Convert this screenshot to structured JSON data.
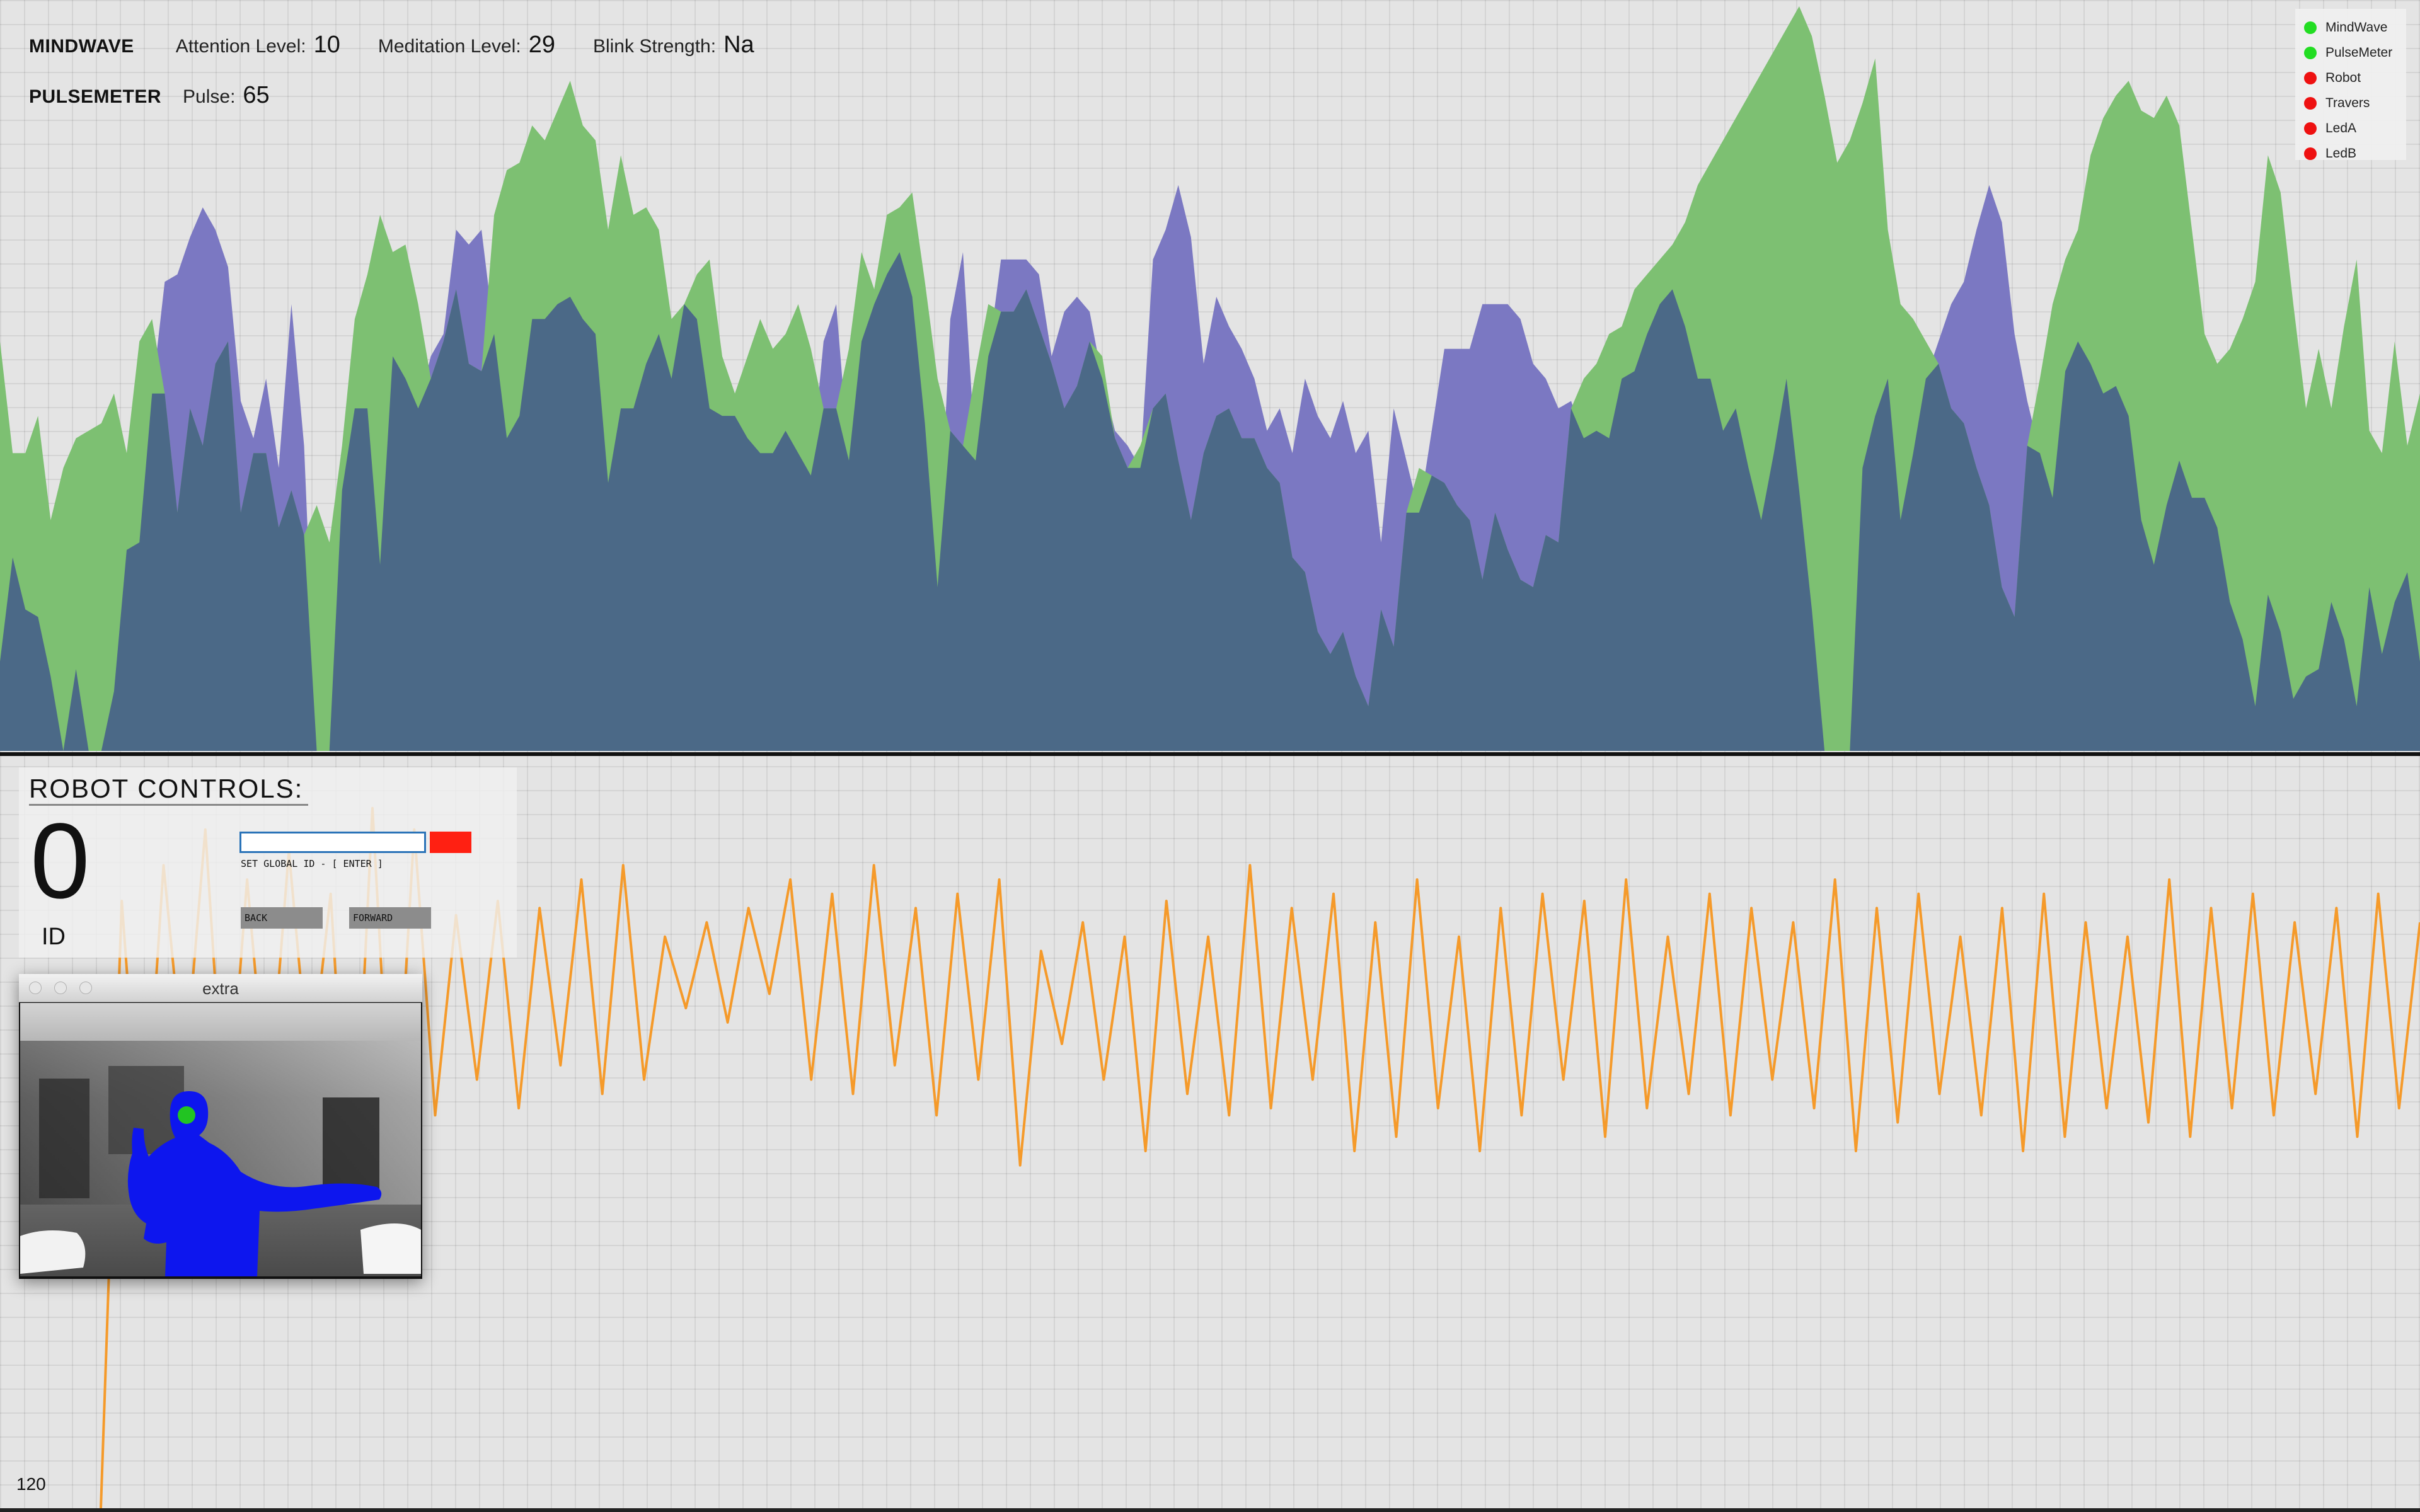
{
  "header": {
    "mindwave": {
      "title": "MINDWAVE",
      "attention_label": "Attention Level:",
      "attention_value": "10",
      "meditation_label": "Meditation Level:",
      "meditation_value": "29",
      "blink_label": "Blink Strength:",
      "blink_value": "Na"
    },
    "pulsemeter": {
      "title": "PULSEMETER",
      "pulse_label": "Pulse:",
      "pulse_value": "65"
    }
  },
  "legend": {
    "items": [
      {
        "label": "MindWave",
        "status": "connected",
        "color": "#22dd22"
      },
      {
        "label": "PulseMeter",
        "status": "connected",
        "color": "#22dd22"
      },
      {
        "label": "Robot",
        "status": "disconnected",
        "color": "#ee1111"
      },
      {
        "label": "Travers",
        "status": "disconnected",
        "color": "#ee1111"
      },
      {
        "label": "LedA",
        "status": "disconnected",
        "color": "#ee1111"
      },
      {
        "label": "LedB",
        "status": "disconnected",
        "color": "#ee1111"
      }
    ]
  },
  "robot_controls": {
    "title": "ROBOT CONTROLS:",
    "id_value": "0",
    "id_label": "ID",
    "global_id_input_value": "",
    "set_global_id_label": "SET GLOBAL ID - [ ENTER ]",
    "back_label": "BACK",
    "forward_label": "FORWARD"
  },
  "extra_window": {
    "title": "extra"
  },
  "footer": {
    "sample_count": "120"
  },
  "colors": {
    "attention_fill": "#7b78c2",
    "meditation_fill": "#7dc072",
    "overlap_fill": "#4b6987",
    "pulse_line": "#f59a2a",
    "user_silhouette": "#0d16ee",
    "head_marker": "#22c422"
  },
  "chart_data": [
    {
      "type": "area",
      "series": [
        {
          "values": [
            12,
            26,
            19,
            18,
            10,
            0,
            11,
            0,
            0,
            8,
            27,
            28,
            48,
            63,
            64,
            69,
            73,
            70,
            65,
            47,
            42,
            50,
            38,
            60,
            41,
            0,
            0,
            35,
            46,
            46,
            25,
            53,
            50,
            46,
            53,
            56,
            70,
            68,
            70,
            56,
            42,
            45,
            58,
            58,
            60,
            61,
            58,
            56,
            36,
            46,
            46,
            52,
            56,
            50,
            60,
            58,
            46,
            45,
            45,
            42,
            40,
            40,
            43,
            40,
            37,
            55,
            60,
            39,
            55,
            60,
            64,
            67,
            61,
            44,
            22,
            58,
            67,
            39,
            53,
            66,
            66,
            66,
            64,
            53,
            59,
            61,
            59,
            50,
            43,
            41,
            38,
            66,
            70,
            76,
            69,
            52,
            61,
            57,
            54,
            50,
            43,
            46,
            40,
            50,
            45,
            42,
            47,
            40,
            43,
            28,
            46,
            39,
            32,
            43,
            54,
            54,
            54,
            60,
            60,
            60,
            58,
            52,
            50,
            46,
            47,
            42,
            43,
            42,
            50,
            51,
            56,
            60,
            62,
            57,
            50,
            50,
            43,
            46,
            38,
            31,
            40,
            50,
            35,
            19,
            0,
            0,
            0,
            38,
            45,
            50,
            31,
            40,
            50,
            55,
            60,
            63,
            70,
            76,
            71,
            56,
            47,
            40,
            34,
            51,
            55,
            52,
            48,
            49,
            45,
            31,
            25,
            33,
            39,
            34,
            34,
            30,
            20,
            15,
            6,
            21,
            16,
            7,
            10,
            11,
            20,
            15,
            6,
            22,
            13,
            20,
            24,
            12
          ]
        },
        {
          "values": [
            55,
            40,
            40,
            45,
            31,
            38,
            42,
            43,
            44,
            48,
            40,
            55,
            58,
            48,
            32,
            46,
            41,
            52,
            55,
            32,
            40,
            40,
            30,
            35,
            29,
            33,
            28,
            41,
            58,
            64,
            72,
            67,
            68,
            60,
            50,
            55,
            62,
            52,
            51,
            72,
            78,
            79,
            84,
            82,
            86,
            90,
            84,
            82,
            70,
            80,
            72,
            73,
            70,
            58,
            60,
            64,
            66,
            53,
            48,
            53,
            58,
            54,
            56,
            60,
            54,
            46,
            46,
            54,
            67,
            62,
            72,
            73,
            75,
            63,
            50,
            43,
            41,
            51,
            60,
            59,
            59,
            62,
            57,
            52,
            46,
            49,
            55,
            53,
            42,
            38,
            41,
            46,
            48,
            39,
            31,
            40,
            45,
            46,
            42,
            42,
            38,
            36,
            26,
            24,
            16,
            13,
            16,
            10,
            6,
            19,
            14,
            32,
            38,
            37,
            36,
            33,
            31,
            23,
            32,
            27,
            23,
            22,
            29,
            28,
            46,
            50,
            52,
            56,
            57,
            62,
            64,
            66,
            68,
            71,
            76,
            79,
            82,
            85,
            88,
            91,
            94,
            97,
            100,
            96,
            88,
            79,
            82,
            87,
            93,
            70,
            60,
            58,
            55,
            52,
            46,
            44,
            38,
            33,
            22,
            18,
            41,
            50,
            60,
            66,
            70,
            80,
            85,
            88,
            90,
            86,
            85,
            88,
            84,
            70,
            56,
            52,
            54,
            58,
            63,
            80,
            75,
            60,
            46,
            54,
            46,
            57,
            66,
            43,
            40,
            55,
            41,
            48
          ]
        }
      ]
    },
    {
      "type": "line",
      "x": "sample index",
      "ylim": [
        0,
        100
      ],
      "series": [
        {
          "values": [
            0,
            85,
            45,
            90,
            60,
            95,
            50,
            88,
            55,
            92,
            60,
            86,
            38,
            98,
            45,
            95,
            55,
            83,
            60,
            85,
            56,
            84,
            62,
            88,
            58,
            90,
            60,
            80,
            70,
            82,
            68,
            84,
            72,
            88,
            60,
            86,
            58,
            90,
            62,
            84,
            55,
            86,
            60,
            88,
            48,
            78,
            65,
            82,
            60,
            80,
            50,
            85,
            58,
            80,
            55,
            90,
            56,
            84,
            60,
            86,
            50,
            82,
            52,
            88,
            56,
            80,
            50,
            84,
            55,
            86,
            60,
            85,
            52,
            88,
            56,
            80,
            58,
            86,
            55,
            84,
            60,
            82,
            56,
            88,
            50,
            84,
            54,
            86,
            58,
            80,
            55,
            84,
            50,
            86,
            52,
            82,
            56,
            80,
            54,
            88,
            52,
            84,
            56,
            86,
            55,
            82,
            58,
            84,
            52,
            86,
            56,
            82
          ]
        }
      ]
    }
  ]
}
